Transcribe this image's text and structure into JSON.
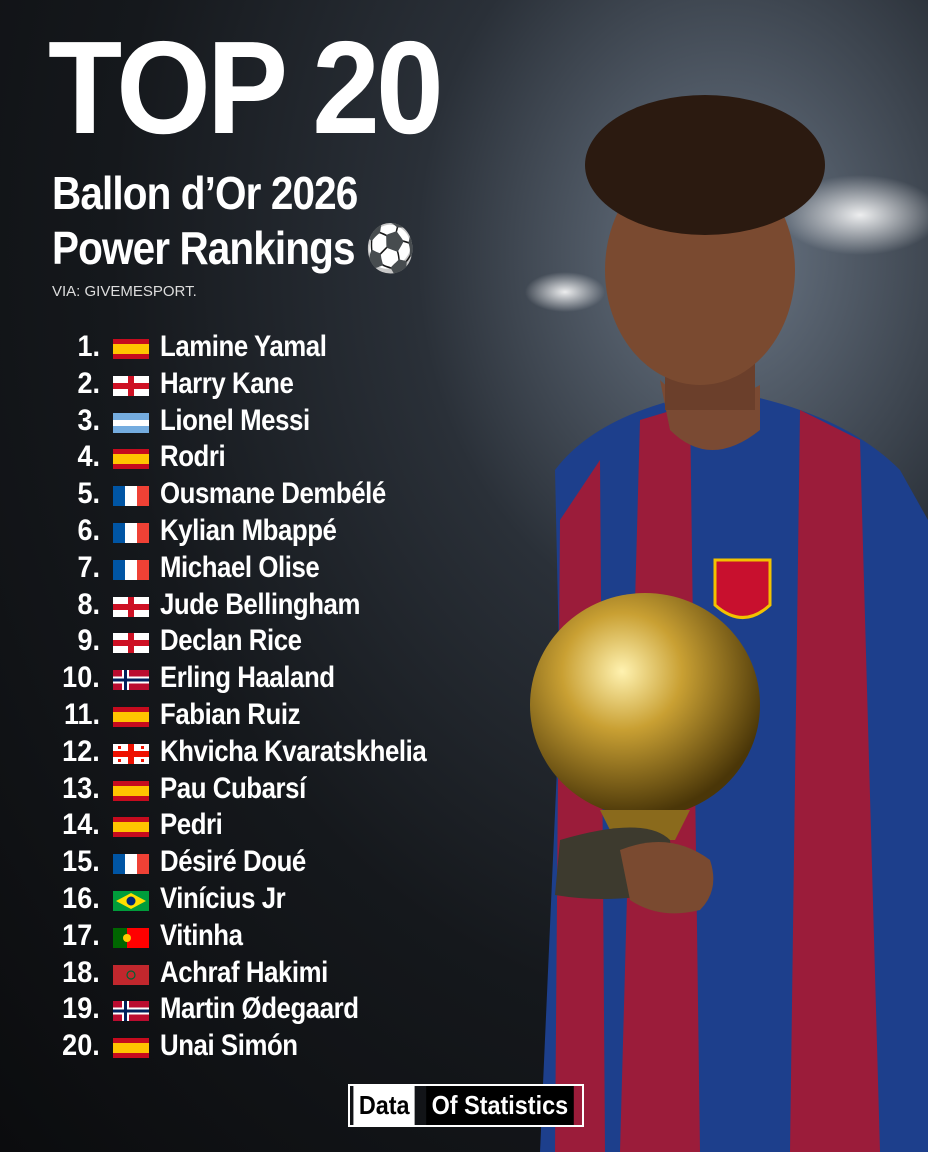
{
  "header": {
    "title": "TOP 20",
    "subtitle_line1": "Ballon d’Or 2026",
    "subtitle_line2": "Power Rankings ⚽",
    "source": "VIA: GIVEMESPORT."
  },
  "rankings": [
    {
      "rank": "1.",
      "name": "Lamine Yamal"
    },
    {
      "rank": "2.",
      "name": "Harry Kane"
    },
    {
      "rank": "3.",
      "name": "Lionel Messi"
    },
    {
      "rank": "4.",
      "name": "Rodri"
    },
    {
      "rank": "5.",
      "name": "Ousmane Dembélé"
    },
    {
      "rank": "6.",
      "name": "Kylian Mbappé"
    },
    {
      "rank": "7.",
      "name": "Michael Olise"
    },
    {
      "rank": "8.",
      "name": "Jude Bellingham"
    },
    {
      "rank": "9.",
      "name": "Declan Rice"
    },
    {
      "rank": "10.",
      "name": "Erling Haaland"
    },
    {
      "rank": "11.",
      "name": "Fabian Ruiz"
    },
    {
      "rank": "12.",
      "name": "Khvicha Kvaratskhelia"
    },
    {
      "rank": "13.",
      "name": "Pau Cubarsí"
    },
    {
      "rank": "14.",
      "name": "Pedri"
    },
    {
      "rank": "15.",
      "name": "Désiré Doué"
    },
    {
      "rank": "16.",
      "name": "Vinícius Jr"
    },
    {
      "rank": "17.",
      "name": "Vitinha"
    },
    {
      "rank": "18.",
      "name": "Achraf Hakimi"
    },
    {
      "rank": "19.",
      "name": "Martin Ødegaard"
    },
    {
      "rank": "20.",
      "name": "Unai Simón"
    }
  ],
  "footer": {
    "brand_left": "Data",
    "brand_right": "Of Statistics"
  }
}
